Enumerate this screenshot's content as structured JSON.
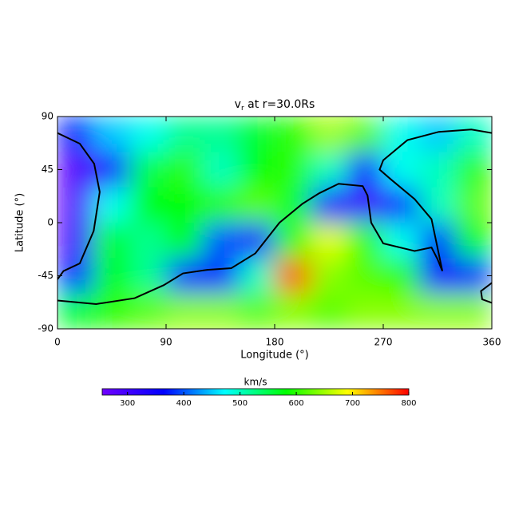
{
  "chart_data": {
    "type": "heatmap",
    "title": [
      "v",
      "r",
      " at r=30.0Rs"
    ],
    "x_label": "Longitude (°)",
    "y_label": "Latitude (°)",
    "xlim": [
      0,
      360
    ],
    "xticks": [
      0,
      90,
      180,
      270,
      360
    ],
    "ylim": [
      -90,
      90
    ],
    "yticks": [
      -90,
      -45,
      0,
      45,
      90
    ],
    "x": [
      15,
      45,
      75,
      105,
      135,
      165,
      195,
      225,
      255,
      285,
      315,
      345
    ],
    "y": [
      75,
      45,
      15,
      -15,
      -45,
      -75
    ],
    "z": [
      [
        380,
        450,
        480,
        520,
        520,
        560,
        600,
        650,
        620,
        480,
        450,
        500
      ],
      [
        280,
        350,
        550,
        600,
        500,
        580,
        600,
        500,
        380,
        480,
        500,
        600
      ],
      [
        280,
        480,
        580,
        580,
        600,
        620,
        560,
        350,
        300,
        380,
        500,
        620
      ],
      [
        300,
        560,
        520,
        580,
        400,
        330,
        600,
        680,
        600,
        480,
        380,
        580
      ],
      [
        380,
        580,
        520,
        380,
        380,
        500,
        760,
        640,
        620,
        600,
        350,
        380
      ],
      [
        560,
        600,
        620,
        640,
        640,
        620,
        640,
        620,
        640,
        640,
        640,
        640
      ]
    ],
    "colormap": [
      "#7000ff",
      "#0000ff",
      "#00ffff",
      "#00ff00",
      "#ffff00",
      "#ff0000"
    ],
    "colorbar_label": "km/s",
    "clim": [
      255,
      800
    ],
    "cticks": [
      300,
      400,
      500,
      600,
      700,
      800
    ],
    "line_color": "#000000",
    "lines": [
      {
        "x": [
          0,
          18.5,
          30.4,
          35,
          30,
          18.5,
          5,
          0
        ],
        "y": [
          76,
          67,
          50,
          26,
          -7,
          -34.5,
          -41,
          -48
        ]
      },
      {
        "x": [
          0,
          32,
          64,
          88,
          104,
          124,
          144,
          164,
          184,
          203,
          217,
          233,
          253,
          257,
          260,
          270,
          296,
          310,
          315,
          319,
          310,
          296,
          276,
          267,
          270,
          290,
          316,
          343,
          360
        ],
        "y": [
          -66,
          -69,
          -64,
          -53,
          -43,
          -40,
          -38.6,
          -26,
          0,
          16,
          25,
          33,
          31,
          23,
          0,
          -17.6,
          -24,
          -21,
          -31,
          -41,
          3,
          20,
          37,
          45,
          53,
          70,
          77,
          79,
          76
        ]
      },
      {
        "x": [
          360,
          351,
          352,
          360
        ],
        "y": [
          -51,
          -58,
          -65,
          -68
        ]
      }
    ]
  }
}
